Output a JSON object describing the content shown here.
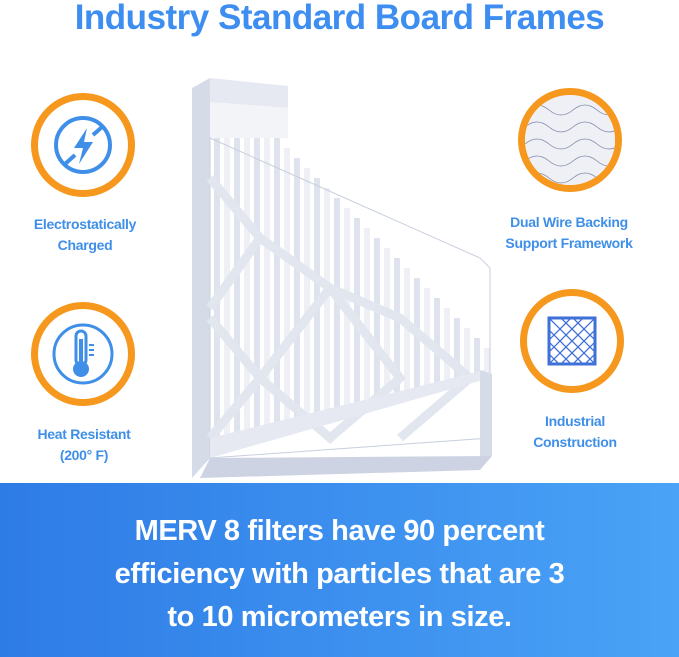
{
  "title": "Industry Standard Board Frames",
  "features": [
    {
      "label_lines": [
        "Electrostatically",
        "Charged"
      ],
      "icon": "lightning-no-static-icon"
    },
    {
      "label_lines": [
        "Heat Resistant",
        "(200° F)"
      ],
      "icon": "thermometer-icon"
    },
    {
      "label_lines": [
        "Dual Wire Backing",
        "Support Framework"
      ],
      "icon": "wire-mesh-photo-icon"
    },
    {
      "label_lines": [
        "Industrial",
        "Construction"
      ],
      "icon": "diamond-grid-icon"
    }
  ],
  "banner": {
    "lines": [
      "MERV 8 filters have 90 percent",
      "efficiency with particles that are 3",
      "to 10 micrometers in size."
    ]
  },
  "colors": {
    "title": "#3d8ef0",
    "ring": "#f6971e",
    "icon": "#3f8fe8",
    "banner_start": "#2e7be6",
    "banner_end": "#4aa3f6"
  }
}
